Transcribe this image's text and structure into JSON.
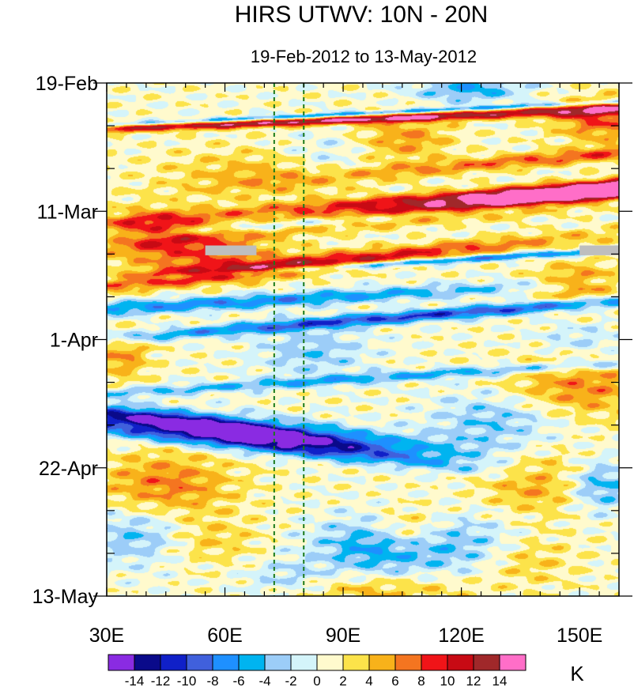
{
  "chart_data": {
    "type": "heatmap",
    "title": "HIRS UTWV: 10N - 20N",
    "subtitle": "19-Feb-2012 to 13-May-2012",
    "x_range": [
      30,
      160
    ],
    "x_ticks": [
      {
        "value": 30,
        "label": "30E"
      },
      {
        "value": 60,
        "label": "60E"
      },
      {
        "value": 90,
        "label": "90E"
      },
      {
        "value": 120,
        "label": "120E"
      },
      {
        "value": 150,
        "label": "150E"
      }
    ],
    "y_range_days": [
      0,
      84
    ],
    "y_ticks": [
      {
        "value": 0,
        "label": "19-Feb"
      },
      {
        "value": 21,
        "label": "11-Mar"
      },
      {
        "value": 42,
        "label": "1-Apr"
      },
      {
        "value": 63,
        "label": "22-Apr"
      },
      {
        "value": 84,
        "label": "13-May"
      }
    ],
    "reference_lines_lon": [
      72.5,
      80
    ],
    "colorbar": {
      "unit": "K",
      "levels": [
        -14,
        -12,
        -10,
        -8,
        -6,
        -4,
        -2,
        0,
        2,
        4,
        6,
        8,
        10,
        12,
        14
      ],
      "labels": [
        "-14",
        "-12",
        "-10",
        "-8",
        "-6",
        "-4",
        "-2",
        "0",
        "2",
        "4",
        "6",
        "8",
        "10",
        "12",
        "14"
      ],
      "colors": [
        "#8a2be2",
        "#0a0a8a",
        "#1020c8",
        "#4060dc",
        "#1e90ff",
        "#00b4f0",
        "#9ccdf8",
        "#d4f4fa",
        "#fffacd",
        "#fce34a",
        "#f8b21a",
        "#f47520",
        "#f01418",
        "#c80a14",
        "#a0282a",
        "#ff6ec8"
      ]
    },
    "missing_color": "#bebebe",
    "anomaly_features": [
      {
        "lon": 143,
        "day": 19,
        "amplitude": 18,
        "sigma_lon": 18,
        "sigma_day": 3.2,
        "tilt": -0.07
      },
      {
        "lon": 150,
        "day": 17,
        "amplitude": 9,
        "sigma_lon": 14,
        "sigma_day": 3.5,
        "tilt": -0.05
      },
      {
        "lon": 125,
        "day": 5,
        "amplitude": 9,
        "sigma_lon": 16,
        "sigma_day": 2.3,
        "tilt": -0.03
      },
      {
        "lon": 155,
        "day": 6,
        "amplitude": 7,
        "sigma_lon": 8,
        "sigma_day": 2.5,
        "tilt": 0
      },
      {
        "lon": 150,
        "day": 12,
        "amplitude": 7,
        "sigma_lon": 15,
        "sigma_day": 2.5,
        "tilt": -0.06
      },
      {
        "lon": 76,
        "day": 30,
        "amplitude": 11,
        "sigma_lon": 15,
        "sigma_day": 3.2,
        "tilt": -0.07
      },
      {
        "lon": 55,
        "day": 28,
        "amplitude": 6,
        "sigma_lon": 15,
        "sigma_day": 2.8,
        "tilt": 0
      },
      {
        "lon": 50,
        "day": 7,
        "amplitude": 6,
        "sigma_lon": 22,
        "sigma_day": 3,
        "tilt": -0.02
      },
      {
        "lon": 42,
        "day": 24,
        "amplitude": 7,
        "sigma_lon": 10,
        "sigma_day": 2.5,
        "tilt": 0
      },
      {
        "lon": 70,
        "day": 15,
        "amplitude": 4,
        "sigma_lon": 18,
        "sigma_day": 3,
        "tilt": 0
      },
      {
        "lon": 148,
        "day": 50,
        "amplitude": 6,
        "sigma_lon": 14,
        "sigma_day": 3.5,
        "tilt": 0
      },
      {
        "lon": 150,
        "day": 33,
        "amplitude": 6,
        "sigma_lon": 8,
        "sigma_day": 2.5,
        "tilt": 0
      },
      {
        "lon": 140,
        "day": 65,
        "amplitude": 5,
        "sigma_lon": 10,
        "sigma_day": 4,
        "tilt": 0
      },
      {
        "lon": 45,
        "day": 66,
        "amplitude": 6,
        "sigma_lon": 12,
        "sigma_day": 4,
        "tilt": 0
      },
      {
        "lon": 53,
        "day": 75,
        "amplitude": 4,
        "sigma_lon": 10,
        "sigma_day": 3,
        "tilt": 0
      },
      {
        "lon": 106,
        "day": 73,
        "amplitude": 5,
        "sigma_lon": 6,
        "sigma_day": 2.5,
        "tilt": 0
      },
      {
        "lon": 135,
        "day": 78,
        "amplitude": 4,
        "sigma_lon": 9,
        "sigma_day": 3,
        "tilt": 0
      },
      {
        "lon": 34,
        "day": 45,
        "amplitude": 5,
        "sigma_lon": 5,
        "sigma_day": 2.5,
        "tilt": 0
      },
      {
        "lon": 106,
        "day": 9,
        "amplitude": 5,
        "sigma_lon": 8,
        "sigma_day": 2.5,
        "tilt": 0
      },
      {
        "lon": 100,
        "day": 83,
        "amplitude": 4,
        "sigma_lon": 15,
        "sigma_day": 2,
        "tilt": 0
      },
      {
        "lon": 61,
        "day": 57,
        "amplitude": -14,
        "sigma_lon": 22,
        "sigma_day": 2.6,
        "tilt": 0.1
      },
      {
        "lon": 55,
        "day": 56,
        "amplitude": -8,
        "sigma_lon": 9,
        "sigma_day": 2.2,
        "tilt": 0.1
      },
      {
        "lon": 80,
        "day": 60,
        "amplitude": -6,
        "sigma_lon": 12,
        "sigma_day": 2.5,
        "tilt": 0.08
      },
      {
        "lon": 112,
        "day": 38,
        "amplitude": -11,
        "sigma_lon": 14,
        "sigma_day": 3,
        "tilt": -0.05
      },
      {
        "lon": 60,
        "day": 36,
        "amplitude": -8,
        "sigma_lon": 22,
        "sigma_day": 2.2,
        "tilt": -0.04
      },
      {
        "lon": 100,
        "day": 22,
        "amplitude": -10,
        "sigma_lon": 13,
        "sigma_day": 2.4,
        "tilt": -0.05
      },
      {
        "lon": 117,
        "day": 29,
        "amplitude": -9,
        "sigma_lon": 10,
        "sigma_day": 2.5,
        "tilt": -0.04
      },
      {
        "lon": 82,
        "day": 44,
        "amplitude": -4,
        "sigma_lon": 10,
        "sigma_day": 3,
        "tilt": 0
      },
      {
        "lon": 95,
        "day": 5,
        "amplitude": -8,
        "sigma_lon": 9,
        "sigma_day": 2,
        "tilt": -0.03
      },
      {
        "lon": 122,
        "day": 1,
        "amplitude": -6,
        "sigma_lon": 10,
        "sigma_day": 1.5,
        "tilt": 0
      },
      {
        "lon": 105,
        "day": 48,
        "amplitude": -6,
        "sigma_lon": 15,
        "sigma_day": 4,
        "tilt": -0.04
      },
      {
        "lon": 130,
        "day": 55,
        "amplitude": -5,
        "sigma_lon": 12,
        "sigma_day": 4,
        "tilt": 0
      },
      {
        "lon": 100,
        "day": 76,
        "amplitude": -7,
        "sigma_lon": 12,
        "sigma_day": 3.5,
        "tilt": 0
      },
      {
        "lon": 40,
        "day": 74,
        "amplitude": -6,
        "sigma_lon": 10,
        "sigma_day": 3.5,
        "tilt": 0
      },
      {
        "lon": 155,
        "day": 66,
        "amplitude": -6,
        "sigma_lon": 6,
        "sigma_day": 3,
        "tilt": 0
      },
      {
        "lon": 125,
        "day": 76,
        "amplitude": -4,
        "sigma_lon": 10,
        "sigma_day": 3.5,
        "tilt": 0
      },
      {
        "lon": 150,
        "day": 42,
        "amplitude": -3,
        "sigma_lon": 8,
        "sigma_day": 2,
        "tilt": 0
      },
      {
        "lon": 85,
        "day": 12,
        "amplitude": -3,
        "sigma_lon": 8,
        "sigma_day": 2.5,
        "tilt": 0
      },
      {
        "lon": 75,
        "day": 81,
        "amplitude": -3,
        "sigma_lon": 8,
        "sigma_day": 2,
        "tilt": 0
      }
    ],
    "missing_data_spans": [
      {
        "lon": [
          55,
          68
        ],
        "days": [
          26.6,
          28.2
        ]
      },
      {
        "lon": [
          150,
          160
        ],
        "days": [
          26.6,
          28.2
        ]
      }
    ]
  }
}
